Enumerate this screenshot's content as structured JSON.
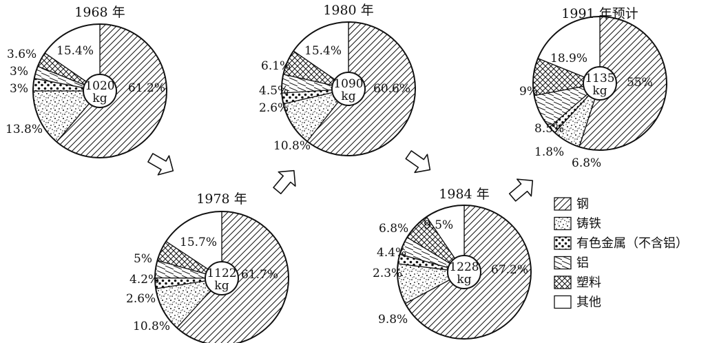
{
  "chart_data": {
    "type": "pie",
    "legend": {
      "placement": "bottom-right",
      "entries": [
        {
          "name": "钢",
          "pattern": "diag"
        },
        {
          "name": "铸铁",
          "pattern": "dots"
        },
        {
          "name": "有色金属（不含铝）",
          "pattern": "blobs"
        },
        {
          "name": "铝",
          "pattern": "alu"
        },
        {
          "name": "塑料",
          "pattern": "cross"
        },
        {
          "name": "其他",
          "pattern": "none"
        }
      ]
    },
    "charts": [
      {
        "title": "1968 年",
        "center_value": "1020",
        "center_unit": "kg",
        "values": [
          61.2,
          13.8,
          3.0,
          3.0,
          3.6,
          15.4
        ],
        "labels": [
          "61.2%",
          "13.8%",
          "3%",
          "3%",
          "3.6%",
          "15.4%"
        ]
      },
      {
        "title": "1978 年",
        "center_value": "1122",
        "center_unit": "kg",
        "values": [
          61.7,
          10.8,
          2.6,
          4.2,
          5.0,
          15.7
        ],
        "labels": [
          "61.7%",
          "10.8%",
          "2.6%",
          "4.2%",
          "5%",
          "15.7%"
        ]
      },
      {
        "title": "1980 年",
        "center_value": "1090",
        "center_unit": "kg",
        "values": [
          60.6,
          10.8,
          2.6,
          4.5,
          6.1,
          15.4
        ],
        "labels": [
          "60.6%",
          "10.8%",
          "2.6%",
          "4.5%",
          "6.1%",
          "15.4%"
        ]
      },
      {
        "title": "1984 年",
        "center_value": "1228",
        "center_unit": "kg",
        "values": [
          67.2,
          9.8,
          2.3,
          4.4,
          6.8,
          9.5
        ],
        "labels": [
          "67.2%",
          "9.8%",
          "2.3%",
          "4.4%",
          "6.8%",
          "9.5%"
        ]
      },
      {
        "title": "1991 年预计",
        "center_value": "1135",
        "center_unit": "kg",
        "values": [
          55.0,
          6.8,
          1.8,
          8.5,
          9.0,
          18.9
        ],
        "labels": [
          "55%",
          "6.8%",
          "1.8%",
          "8.5%",
          "9%",
          "18.9%"
        ]
      }
    ],
    "sequence": [
      "1968 年",
      "1978 年",
      "1980 年",
      "1984 年",
      "1991 年预计"
    ]
  }
}
